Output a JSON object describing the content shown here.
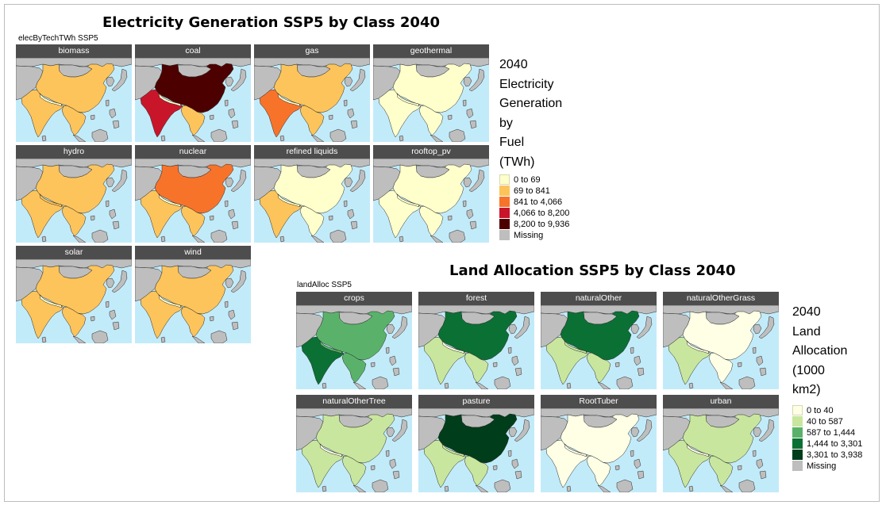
{
  "figures": [
    {
      "title": "Electricity Generation SSP5 by Class 2040",
      "subtitle": "elecByTechTWh SSP5",
      "legend_title": "2040\nElectricity\nGeneration\nby\nFuel\n(TWh)",
      "legend": [
        {
          "label": "0 to 69",
          "color": "#FFFFCC"
        },
        {
          "label": "69 to 841",
          "color": "#FDC45B"
        },
        {
          "label": "841 to 4,066",
          "color": "#F8732A"
        },
        {
          "label": "4,066 to 8,200",
          "color": "#C9152A"
        },
        {
          "label": "8,200 to 9,936",
          "color": "#4D0000"
        },
        {
          "label": "Missing",
          "color": "#BEBEBE"
        }
      ],
      "panels": [
        {
          "label": "biomass",
          "class_by_region": {
            "china": 1,
            "india": 1,
            "seasia": 1,
            "nepal": 0
          }
        },
        {
          "label": "coal",
          "class_by_region": {
            "china": 4,
            "india": 3,
            "seasia": 1,
            "nepal": 0
          }
        },
        {
          "label": "gas",
          "class_by_region": {
            "china": 1,
            "india": 2,
            "seasia": 1,
            "nepal": 0
          }
        },
        {
          "label": "geothermal",
          "class_by_region": {
            "china": 0,
            "india": 0,
            "seasia": 0,
            "nepal": 0
          }
        },
        {
          "label": "hydro",
          "class_by_region": {
            "china": 1,
            "india": 1,
            "seasia": 1,
            "nepal": 1
          }
        },
        {
          "label": "nuclear",
          "class_by_region": {
            "china": 2,
            "india": 1,
            "seasia": 1,
            "nepal": 0
          }
        },
        {
          "label": "refined liquids",
          "class_by_region": {
            "china": 0,
            "india": 1,
            "seasia": 0,
            "nepal": 0
          }
        },
        {
          "label": "rooftop_pv",
          "class_by_region": {
            "china": 0,
            "india": 0,
            "seasia": 0,
            "nepal": 0
          }
        },
        {
          "label": "solar",
          "class_by_region": {
            "china": 1,
            "india": 1,
            "seasia": 1,
            "nepal": 0
          }
        },
        {
          "label": "wind",
          "class_by_region": {
            "china": 1,
            "india": 1,
            "seasia": 1,
            "nepal": 0
          }
        }
      ]
    },
    {
      "title": "Land Allocation SSP5 by Class 2040",
      "subtitle": "landAlloc SSP5",
      "legend_title": "2040\nLand\nAllocation\n(1000\nkm2)",
      "legend": [
        {
          "label": "0 to 40",
          "color": "#FFFFE5"
        },
        {
          "label": "40 to 587",
          "color": "#C9E69E"
        },
        {
          "label": "587 to 1,444",
          "color": "#5AB26A"
        },
        {
          "label": "1,444 to 3,301",
          "color": "#0B7034"
        },
        {
          "label": "3,301 to 3,938",
          "color": "#003D1A"
        },
        {
          "label": "Missing",
          "color": "#BEBEBE"
        }
      ],
      "panels": [
        {
          "label": "crops",
          "class_by_region": {
            "china": 2,
            "india": 3,
            "seasia": 2,
            "nepal": 2
          }
        },
        {
          "label": "forest",
          "class_by_region": {
            "china": 3,
            "india": 1,
            "seasia": 1,
            "nepal": 0
          }
        },
        {
          "label": "naturalOther",
          "class_by_region": {
            "china": 3,
            "india": 1,
            "seasia": 1,
            "nepal": 1
          }
        },
        {
          "label": "naturalOtherGrass",
          "class_by_region": {
            "china": 0,
            "india": 1,
            "seasia": 0,
            "nepal": 0
          }
        },
        {
          "label": "naturalOtherTree",
          "class_by_region": {
            "china": 1,
            "india": 1,
            "seasia": 1,
            "nepal": 0
          }
        },
        {
          "label": "pasture",
          "class_by_region": {
            "china": 4,
            "india": 1,
            "seasia": 1,
            "nepal": 1
          }
        },
        {
          "label": "RootTuber",
          "class_by_region": {
            "china": 0,
            "india": 0,
            "seasia": 0,
            "nepal": 0
          }
        },
        {
          "label": "urban",
          "class_by_region": {
            "china": 1,
            "india": 1,
            "seasia": 1,
            "nepal": 0
          }
        }
      ]
    }
  ],
  "map_colors": {
    "sea": "#C2EBFA",
    "missing": "#BEBEBE",
    "border": "#2b2b2b"
  }
}
